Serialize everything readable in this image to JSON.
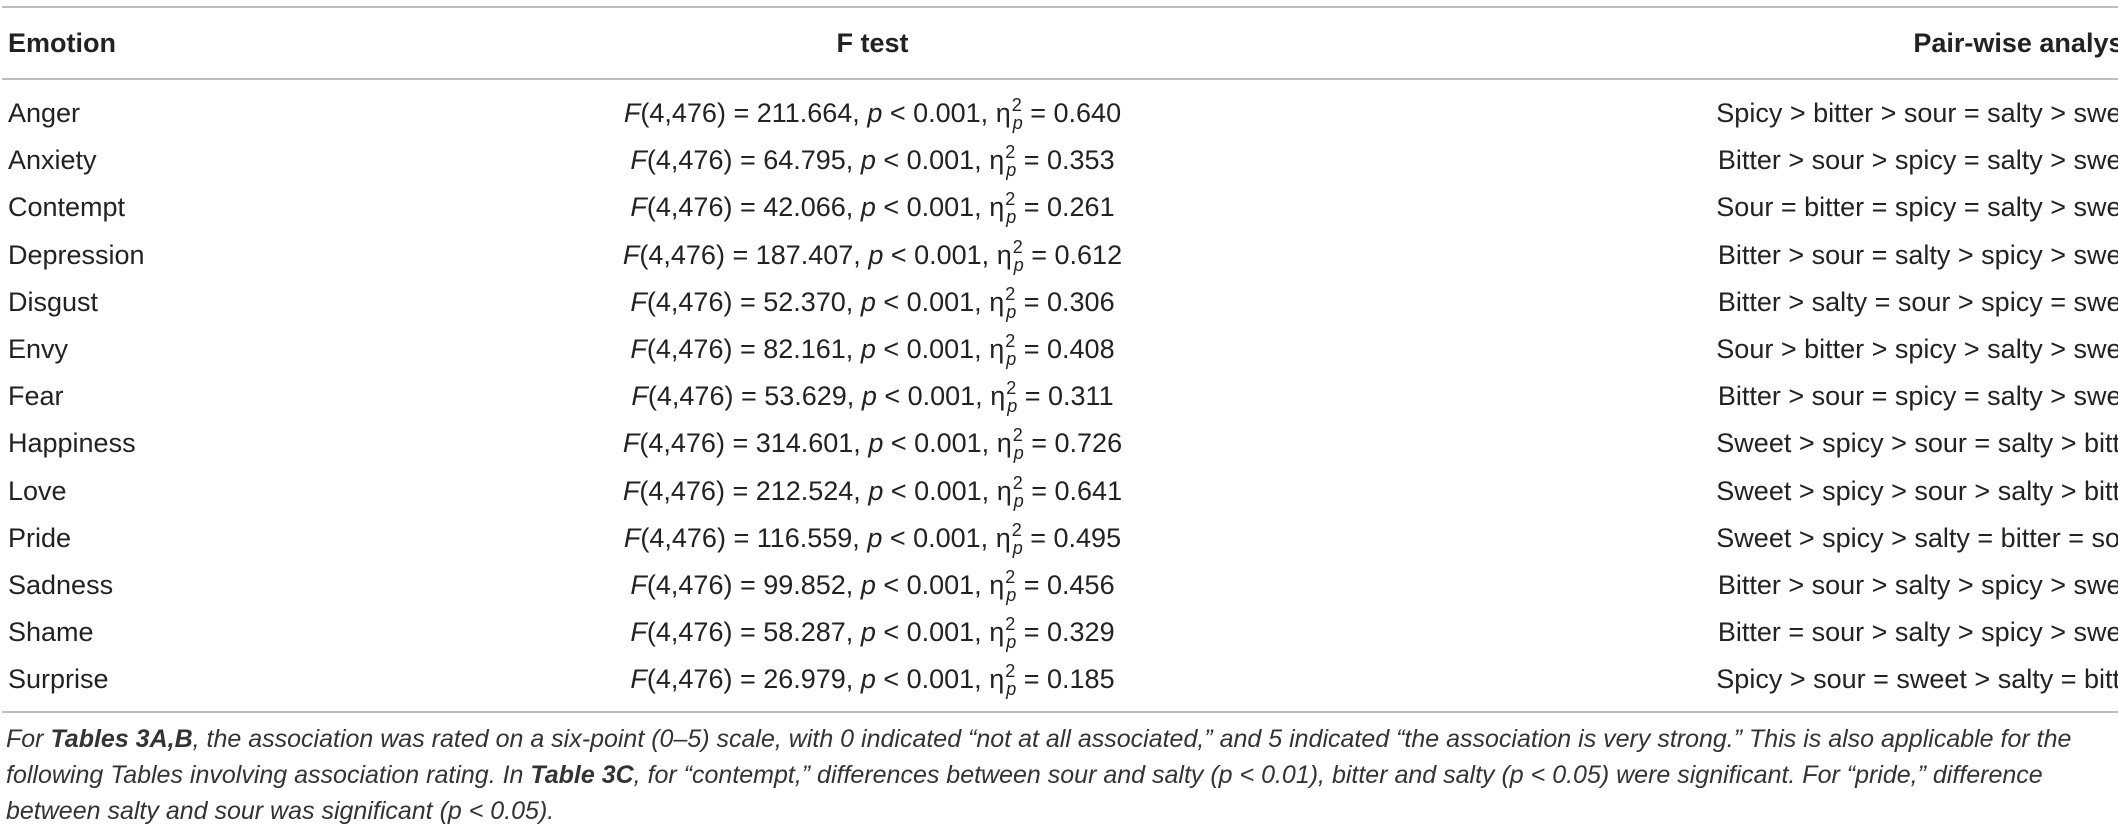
{
  "table": {
    "headers": [
      "Emotion",
      "F test",
      "Pair-wise analysis"
    ],
    "rows": [
      {
        "emotion": "Anger",
        "f_stat": "F",
        "df": "(4,476) = 211.664, ",
        "p": "p",
        "p_rel": " < 0.001, ",
        "eta": "η",
        "eta_sup": "2",
        "eta_sub": "p",
        "eta_val": " = 0.640",
        "pairwise": "Spicy > bitter > sour = salty > sweet"
      },
      {
        "emotion": "Anxiety",
        "f_stat": "F",
        "df": "(4,476) = 64.795, ",
        "p": "p",
        "p_rel": " < 0.001, ",
        "eta": "η",
        "eta_sup": "2",
        "eta_sub": "p",
        "eta_val": " = 0.353",
        "pairwise": "Bitter > sour > spicy = salty > sweet"
      },
      {
        "emotion": "Contempt",
        "f_stat": "F",
        "df": "(4,476) = 42.066, ",
        "p": "p",
        "p_rel": " < 0.001, ",
        "eta": "η",
        "eta_sup": "2",
        "eta_sub": "p",
        "eta_val": " = 0.261",
        "pairwise": "Sour = bitter = spicy = salty > sweet"
      },
      {
        "emotion": "Depression",
        "f_stat": "F",
        "df": "(4,476) = 187.407, ",
        "p": "p",
        "p_rel": " < 0.001, ",
        "eta": "η",
        "eta_sup": "2",
        "eta_sub": "p",
        "eta_val": " = 0.612",
        "pairwise": "Bitter > sour = salty > spicy > sweet"
      },
      {
        "emotion": "Disgust",
        "f_stat": "F",
        "df": "(4,476) = 52.370, ",
        "p": "p",
        "p_rel": " < 0.001, ",
        "eta": "η",
        "eta_sup": "2",
        "eta_sub": "p",
        "eta_val": " = 0.306",
        "pairwise": "Bitter > salty = sour > spicy = sweet"
      },
      {
        "emotion": "Envy",
        "f_stat": "F",
        "df": "(4,476) = 82.161, ",
        "p": "p",
        "p_rel": " < 0.001, ",
        "eta": "η",
        "eta_sup": "2",
        "eta_sub": "p",
        "eta_val": " = 0.408",
        "pairwise": "Sour > bitter > spicy > salty > sweet"
      },
      {
        "emotion": "Fear",
        "f_stat": "F",
        "df": "(4,476) = 53.629, ",
        "p": "p",
        "p_rel": " < 0.001, ",
        "eta": "η",
        "eta_sup": "2",
        "eta_sub": "p",
        "eta_val": " = 0.311",
        "pairwise": "Bitter > sour = spicy = salty > sweet"
      },
      {
        "emotion": "Happiness",
        "f_stat": "F",
        "df": "(4,476) = 314.601, ",
        "p": "p",
        "p_rel": " < 0.001, ",
        "eta": "η",
        "eta_sup": "2",
        "eta_sub": "p",
        "eta_val": " = 0.726",
        "pairwise": "Sweet > spicy > sour = salty > bitter"
      },
      {
        "emotion": "Love",
        "f_stat": "F",
        "df": "(4,476) = 212.524, ",
        "p": "p",
        "p_rel": " < 0.001, ",
        "eta": "η",
        "eta_sup": "2",
        "eta_sub": "p",
        "eta_val": " = 0.641",
        "pairwise": "Sweet > spicy > sour > salty > bitter"
      },
      {
        "emotion": "Pride",
        "f_stat": "F",
        "df": "(4,476) = 116.559, ",
        "p": "p",
        "p_rel": " < 0.001, ",
        "eta": "η",
        "eta_sup": "2",
        "eta_sub": "p",
        "eta_val": " = 0.495",
        "pairwise": "Sweet > spicy > salty = bitter = sour"
      },
      {
        "emotion": "Sadness",
        "f_stat": "F",
        "df": "(4,476) = 99.852, ",
        "p": "p",
        "p_rel": " < 0.001, ",
        "eta": "η",
        "eta_sup": "2",
        "eta_sub": "p",
        "eta_val": " = 0.456",
        "pairwise": "Bitter > sour > salty > spicy > sweet"
      },
      {
        "emotion": "Shame",
        "f_stat": "F",
        "df": "(4,476) = 58.287, ",
        "p": "p",
        "p_rel": " < 0.001, ",
        "eta": "η",
        "eta_sup": "2",
        "eta_sub": "p",
        "eta_val": " = 0.329",
        "pairwise": "Bitter = sour > salty > spicy > sweet"
      },
      {
        "emotion": "Surprise",
        "f_stat": "F",
        "df": "(4,476) = 26.979, ",
        "p": "p",
        "p_rel": " < 0.001, ",
        "eta": "η",
        "eta_sup": "2",
        "eta_sub": "p",
        "eta_val": " = 0.185",
        "pairwise": "Spicy > sour = sweet > salty = bitter"
      }
    ]
  },
  "note": {
    "p1": "For ",
    "ref1": "Tables 3A,B",
    "p2": ", the association was rated on a six-point (0–5) scale, with 0 indicated “not at all associated,” and 5 indicated “the association is very strong.” This is also applicable for the following Tables involving association rating. In ",
    "ref2": "Table 3C",
    "p3": ", for “contempt,” differences between sour and salty (p < 0.01), bitter and salty (p < 0.05) were significant. For “pride,” difference between salty and sour was significant (p < 0.05)."
  }
}
